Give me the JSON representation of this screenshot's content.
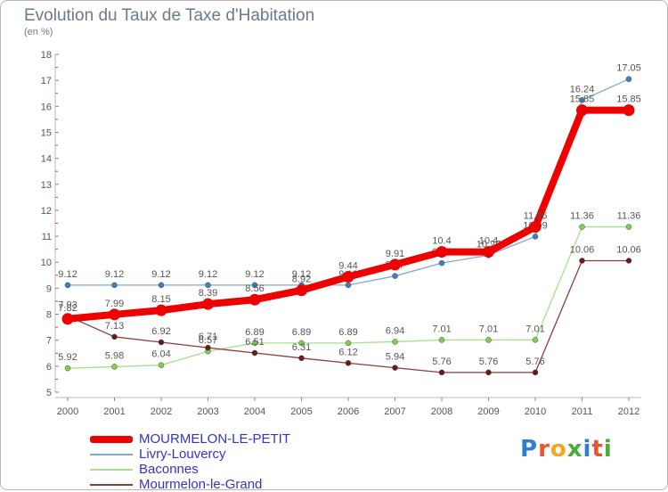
{
  "header": {
    "title": "Evolution du Taux de Taxe d'Habitation",
    "subtitle": "(en %)"
  },
  "logo": {
    "text": "Proxiti",
    "letters": [
      {
        "ch": "P",
        "color": "#2f7fd0"
      },
      {
        "ch": "r",
        "color": "#e8542e"
      },
      {
        "ch": "o",
        "color": "#f2a623"
      },
      {
        "ch": "x",
        "color": "#4caa3c"
      },
      {
        "ch": "i",
        "color": "#2f7fd0"
      },
      {
        "ch": "t",
        "color": "#e8542e"
      },
      {
        "ch": "i",
        "color": "#4caa3c"
      }
    ]
  },
  "chart_data": {
    "type": "line",
    "title": "Evolution du Taux de Taxe d'Habitation",
    "subtitle": "(en %)",
    "xlabel": "",
    "ylabel": "",
    "x": [
      "2000",
      "2001",
      "2002",
      "2003",
      "2004",
      "2005",
      "2006",
      "2007",
      "2008",
      "2009",
      "2010",
      "2011",
      "2012"
    ],
    "ylim": [
      5,
      18
    ],
    "yticks": [
      5,
      6,
      7,
      8,
      9,
      10,
      11,
      12,
      13,
      14,
      15,
      16,
      17,
      18
    ],
    "grid": false,
    "legend_position": "bottom-left",
    "series": [
      {
        "name": "MOURMELON-LE-PETIT",
        "color": "#ee0000",
        "emphasis": true,
        "values": [
          7.82,
          7.99,
          8.15,
          8.39,
          8.56,
          8.92,
          9.44,
          9.91,
          10.4,
          10.4,
          11.36,
          15.85,
          15.85
        ],
        "labels": [
          "7.82",
          "7.99",
          "8.15",
          "8.39",
          "8.56",
          "8.92",
          "9.44",
          "9.91",
          "10.4",
          "10.4",
          "11.36",
          "15.85",
          "15.85"
        ]
      },
      {
        "name": "Livry-Louvercy",
        "color": "#7faad0",
        "marker": "#3d7fc0",
        "values": [
          9.12,
          9.12,
          9.12,
          9.12,
          9.12,
          9.12,
          9.12,
          9.47,
          9.97,
          10.27,
          10.99,
          16.24,
          17.05
        ],
        "labels": [
          "9.12",
          "9.12",
          "9.12",
          "9.12",
          "9.12",
          "9.12",
          "9.12",
          "9.47",
          "9.97",
          "10.27",
          "10.99",
          "16.24",
          "17.05"
        ]
      },
      {
        "name": "Baconnes",
        "color": "#a8e08a",
        "marker": "#7ed04e",
        "values": [
          5.92,
          5.98,
          6.04,
          6.57,
          6.89,
          6.89,
          6.89,
          6.94,
          7.01,
          7.01,
          7.01,
          11.36,
          11.36
        ],
        "labels": [
          "5.92",
          "5.98",
          "6.04",
          "6.57",
          "6.89",
          "6.89",
          "6.89",
          "6.94",
          "7.01",
          "7.01",
          "7.01",
          "11.36",
          "11.36"
        ]
      },
      {
        "name": "Mourmelon-le-Grand",
        "color": "#8e3b3b",
        "marker": "#6a1a1a",
        "values": [
          7.93,
          7.13,
          6.92,
          6.71,
          6.51,
          6.31,
          6.12,
          5.94,
          5.76,
          5.76,
          5.76,
          10.06,
          10.06
        ],
        "labels": [
          "7.93",
          "7.13",
          "6.92",
          "6.71",
          "6.51",
          "6.31",
          "6.12",
          "5.94",
          "5.76",
          "5.76",
          "5.76",
          "10.06",
          "10.06"
        ]
      }
    ]
  }
}
